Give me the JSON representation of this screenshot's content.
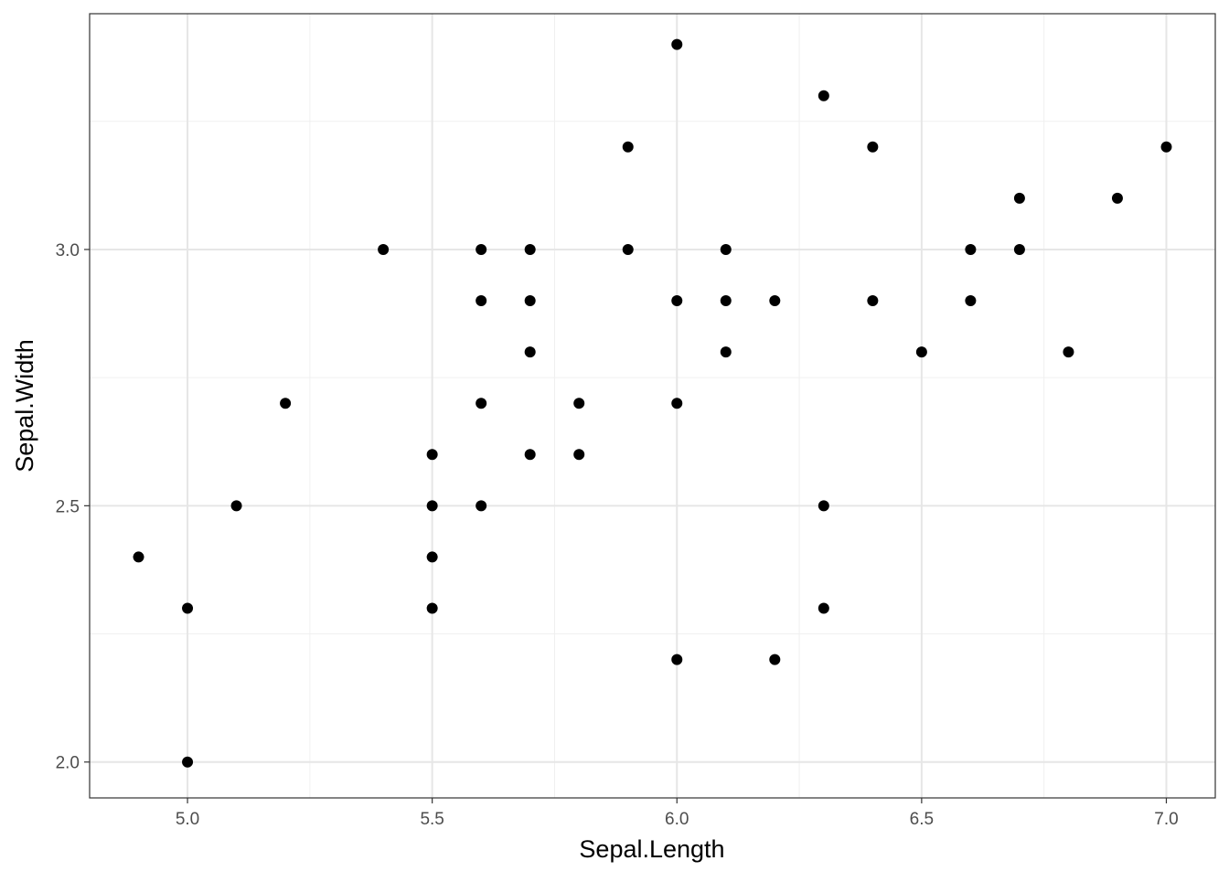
{
  "chart_data": {
    "type": "scatter",
    "title": "",
    "xlabel": "Sepal.Length",
    "ylabel": "Sepal.Width",
    "xlim": [
      4.8,
      7.1
    ],
    "ylim": [
      1.93,
      3.46
    ],
    "x_ticks": [
      5.0,
      5.5,
      6.0,
      6.5,
      7.0
    ],
    "x_tick_labels": [
      "5.0",
      "5.5",
      "6.0",
      "6.5",
      "7.0"
    ],
    "y_ticks": [
      2.0,
      2.5,
      3.0
    ],
    "y_tick_labels": [
      "2.0",
      "2.5",
      "3.0"
    ],
    "x_minor_ticks": [
      5.25,
      5.75,
      6.25,
      6.75
    ],
    "y_minor_ticks": [
      2.25,
      2.75,
      3.25
    ],
    "grid": true,
    "legend": "none",
    "point_color": "#000000",
    "series": [
      {
        "points": [
          [
            4.9,
            2.4
          ],
          [
            5.0,
            2.3
          ],
          [
            5.0,
            2.0
          ],
          [
            5.1,
            2.5
          ],
          [
            5.2,
            2.7
          ],
          [
            5.4,
            3.0
          ],
          [
            5.5,
            2.6
          ],
          [
            5.5,
            2.5
          ],
          [
            5.5,
            2.4
          ],
          [
            5.5,
            2.3
          ],
          [
            5.6,
            3.0
          ],
          [
            5.6,
            2.9
          ],
          [
            5.6,
            2.7
          ],
          [
            5.6,
            2.5
          ],
          [
            5.7,
            3.0
          ],
          [
            5.7,
            2.9
          ],
          [
            5.7,
            2.8
          ],
          [
            5.7,
            2.6
          ],
          [
            5.8,
            2.7
          ],
          [
            5.8,
            2.6
          ],
          [
            5.9,
            3.2
          ],
          [
            5.9,
            3.0
          ],
          [
            6.0,
            3.4
          ],
          [
            6.0,
            2.9
          ],
          [
            6.0,
            2.7
          ],
          [
            6.0,
            2.2
          ],
          [
            6.1,
            3.0
          ],
          [
            6.1,
            2.9
          ],
          [
            6.1,
            2.8
          ],
          [
            6.2,
            2.9
          ],
          [
            6.2,
            2.2
          ],
          [
            6.3,
            3.3
          ],
          [
            6.3,
            2.5
          ],
          [
            6.3,
            2.3
          ],
          [
            6.4,
            3.2
          ],
          [
            6.4,
            2.9
          ],
          [
            6.5,
            2.8
          ],
          [
            6.6,
            3.0
          ],
          [
            6.6,
            2.9
          ],
          [
            6.7,
            3.1
          ],
          [
            6.7,
            3.0
          ],
          [
            6.8,
            2.8
          ],
          [
            6.9,
            3.1
          ],
          [
            7.0,
            3.2
          ]
        ]
      }
    ]
  }
}
